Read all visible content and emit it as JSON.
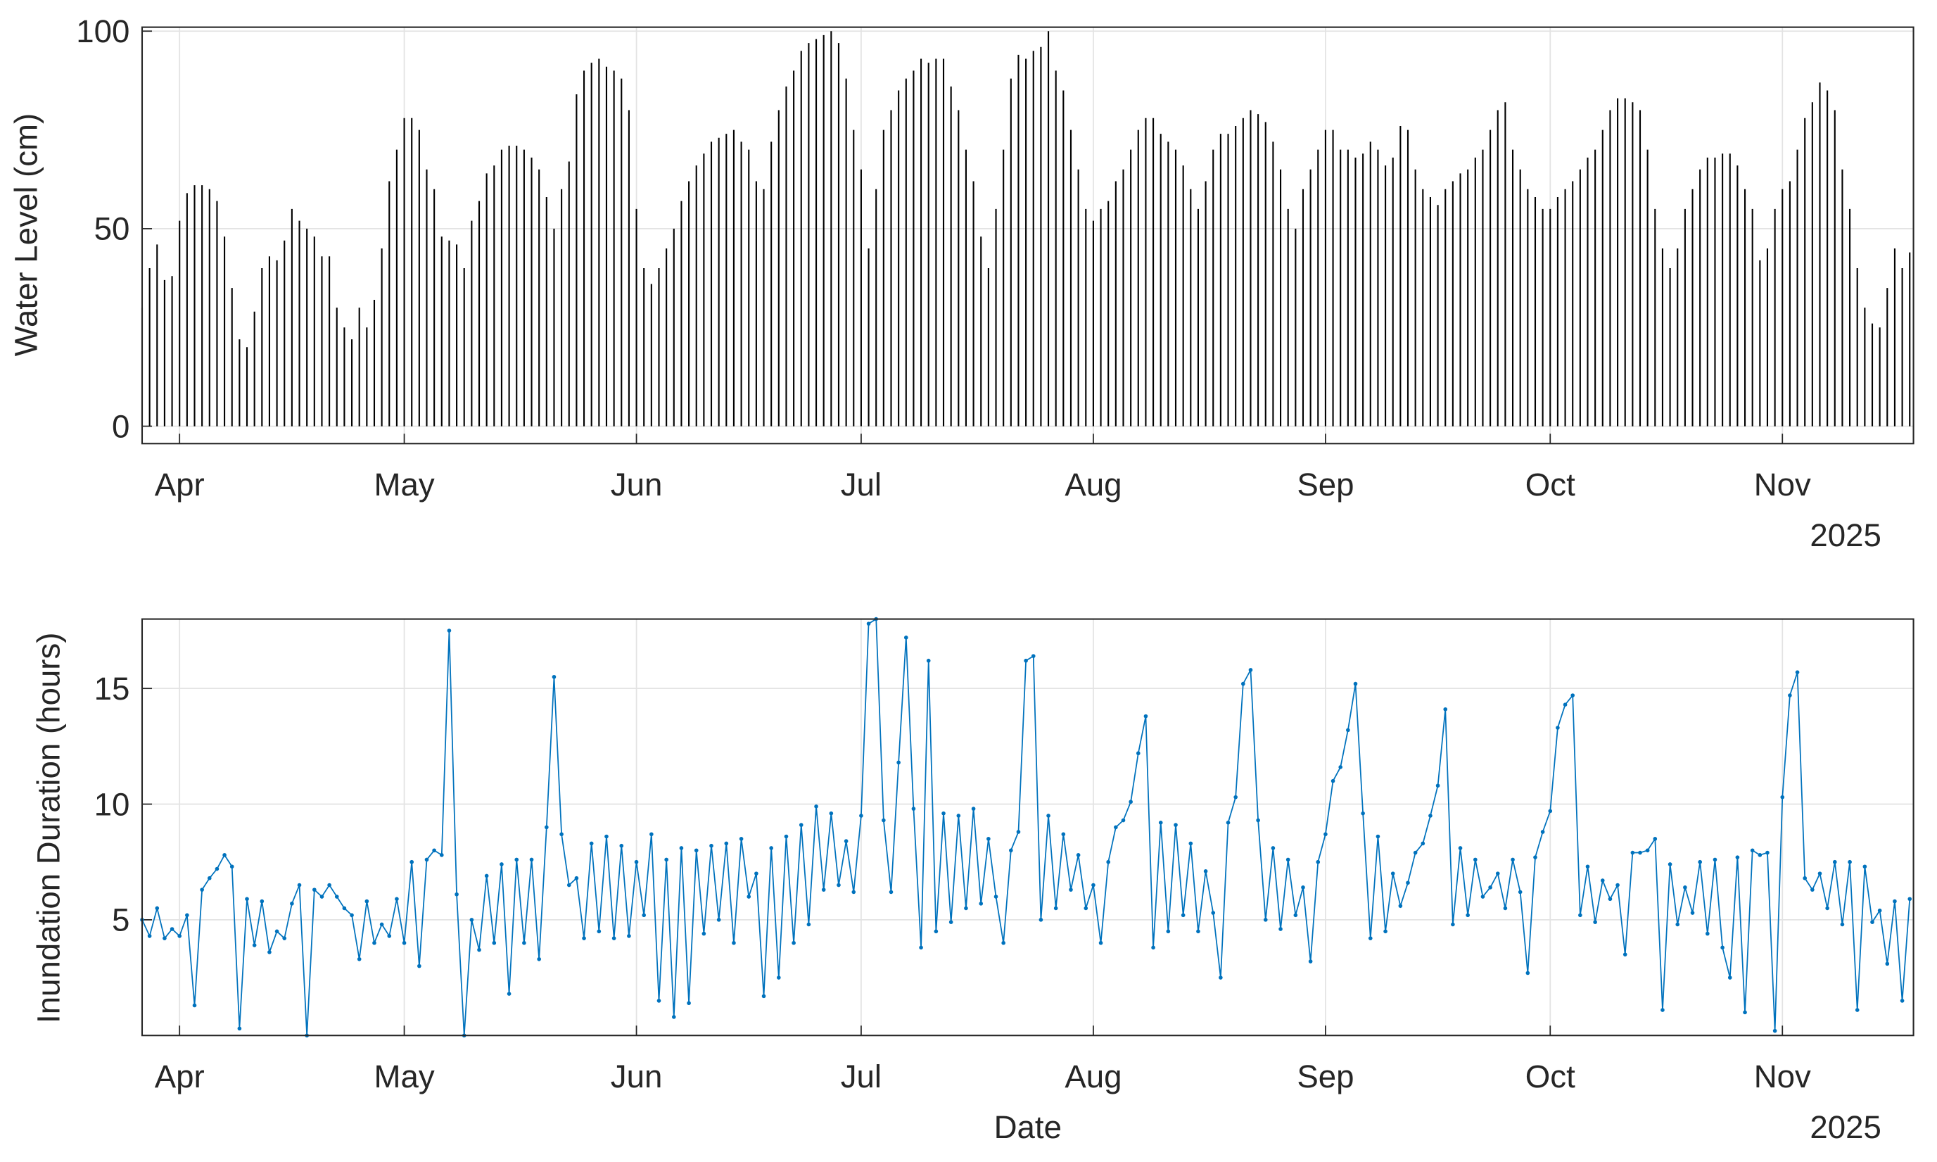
{
  "chart_data": [
    {
      "type": "stem",
      "ylabel": "Water Level (cm)",
      "x_secondary_label": "2025",
      "color": "#000000",
      "grid": true,
      "xlim": [
        86,
        322.5
      ],
      "ylim": [
        -4.4,
        101
      ],
      "yticks": [
        0,
        50,
        100
      ],
      "xticks": [
        {
          "value": 91,
          "label": "Apr"
        },
        {
          "value": 121,
          "label": "May"
        },
        {
          "value": 152,
          "label": "Jun"
        },
        {
          "value": 182,
          "label": "Jul"
        },
        {
          "value": 213,
          "label": "Aug"
        },
        {
          "value": 244,
          "label": "Sep"
        },
        {
          "value": 274,
          "label": "Oct"
        },
        {
          "value": 305,
          "label": "Nov"
        }
      ],
      "x": [
        86,
        87,
        88,
        89,
        90,
        91,
        92,
        93,
        94,
        95,
        96,
        97,
        98,
        99,
        100,
        101,
        102,
        103,
        104,
        105,
        106,
        107,
        108,
        109,
        110,
        111,
        112,
        113,
        114,
        115,
        116,
        117,
        118,
        119,
        120,
        121,
        122,
        123,
        124,
        125,
        126,
        127,
        128,
        129,
        130,
        131,
        132,
        133,
        134,
        135,
        136,
        137,
        138,
        139,
        140,
        141,
        142,
        143,
        144,
        145,
        146,
        147,
        148,
        149,
        150,
        151,
        152,
        153,
        154,
        155,
        156,
        157,
        158,
        159,
        160,
        161,
        162,
        163,
        164,
        165,
        166,
        167,
        168,
        169,
        170,
        171,
        172,
        173,
        174,
        175,
        176,
        177,
        178,
        179,
        180,
        181,
        182,
        183,
        184,
        185,
        186,
        187,
        188,
        189,
        190,
        191,
        192,
        193,
        194,
        195,
        196,
        197,
        198,
        199,
        200,
        201,
        202,
        203,
        204,
        205,
        206,
        207,
        208,
        209,
        210,
        211,
        212,
        213,
        214,
        215,
        216,
        217,
        218,
        219,
        220,
        221,
        222,
        223,
        224,
        225,
        226,
        227,
        228,
        229,
        230,
        231,
        232,
        233,
        234,
        235,
        236,
        237,
        238,
        239,
        240,
        241,
        242,
        243,
        244,
        245,
        246,
        247,
        248,
        249,
        250,
        251,
        252,
        253,
        254,
        255,
        256,
        257,
        258,
        259,
        260,
        261,
        262,
        263,
        264,
        265,
        266,
        267,
        268,
        269,
        270,
        271,
        272,
        273,
        274,
        275,
        276,
        277,
        278,
        279,
        280,
        281,
        282,
        283,
        284,
        285,
        286,
        287,
        288,
        289,
        290,
        291,
        292,
        293,
        294,
        295,
        296,
        297,
        298,
        299,
        300,
        301,
        302,
        303,
        304,
        305,
        306,
        307,
        308,
        309,
        310,
        311,
        312,
        313,
        314,
        315,
        316,
        317,
        318,
        319,
        320,
        321,
        322
      ],
      "values": [
        30,
        40,
        46,
        37,
        38,
        52,
        59,
        61,
        61,
        60,
        57,
        48,
        35,
        22,
        20,
        29,
        40,
        43,
        42,
        47,
        55,
        52,
        50,
        48,
        43,
        43,
        30,
        25,
        22,
        30,
        25,
        32,
        45,
        62,
        70,
        78,
        78,
        75,
        65,
        60,
        48,
        47,
        46,
        40,
        52,
        57,
        64,
        66,
        70,
        71,
        71,
        70,
        68,
        65,
        58,
        50,
        60,
        67,
        84,
        90,
        92,
        93,
        91,
        90,
        88,
        80,
        55,
        40,
        36,
        40,
        45,
        50,
        57,
        62,
        66,
        69,
        72,
        73,
        74,
        75,
        72,
        70,
        62,
        60,
        72,
        80,
        86,
        90,
        95,
        97,
        98,
        99,
        100,
        97,
        88,
        75,
        65,
        45,
        60,
        75,
        80,
        85,
        88,
        90,
        93,
        92,
        93,
        93,
        86,
        80,
        70,
        62,
        48,
        40,
        55,
        70,
        88,
        94,
        93,
        95,
        96,
        100,
        90,
        85,
        75,
        65,
        55,
        52,
        55,
        57,
        62,
        65,
        70,
        75,
        78,
        78,
        74,
        72,
        70,
        66,
        60,
        55,
        62,
        70,
        74,
        74,
        76,
        78,
        80,
        79,
        77,
        72,
        65,
        55,
        50,
        60,
        65,
        70,
        75,
        75,
        70,
        70,
        68,
        69,
        72,
        70,
        66,
        68,
        76,
        75,
        65,
        60,
        58,
        56,
        60,
        62,
        64,
        65,
        68,
        70,
        75,
        80,
        82,
        70,
        65,
        60,
        58,
        55,
        55,
        58,
        60,
        62,
        65,
        68,
        70,
        75,
        80,
        83,
        83,
        82,
        80,
        70,
        55,
        45,
        40,
        45,
        55,
        60,
        65,
        68,
        68,
        69,
        69,
        66,
        60,
        55,
        42,
        45,
        55,
        60,
        62,
        70,
        78,
        82,
        87,
        85,
        80,
        65,
        55,
        40,
        30,
        26,
        25,
        35,
        45,
        40,
        44
      ]
    },
    {
      "type": "line",
      "ylabel": "Inundation Duration (hours)",
      "xlabel": "Date",
      "x_secondary_label": "2025",
      "color": "#0072bd",
      "grid": true,
      "xlim": [
        86,
        322.5
      ],
      "ylim": [
        0,
        18
      ],
      "yticks": [
        5,
        10,
        15
      ],
      "xticks": [
        {
          "value": 91,
          "label": "Apr"
        },
        {
          "value": 121,
          "label": "May"
        },
        {
          "value": 152,
          "label": "Jun"
        },
        {
          "value": 182,
          "label": "Jul"
        },
        {
          "value": 213,
          "label": "Aug"
        },
        {
          "value": 244,
          "label": "Sep"
        },
        {
          "value": 274,
          "label": "Oct"
        },
        {
          "value": 305,
          "label": "Nov"
        }
      ],
      "x": [
        86,
        87,
        88,
        89,
        90,
        91,
        92,
        93,
        94,
        95,
        96,
        97,
        98,
        99,
        100,
        101,
        102,
        103,
        104,
        105,
        106,
        107,
        108,
        109,
        110,
        111,
        112,
        113,
        114,
        115,
        116,
        117,
        118,
        119,
        120,
        121,
        122,
        123,
        124,
        125,
        126,
        127,
        128,
        129,
        130,
        131,
        132,
        133,
        134,
        135,
        136,
        137,
        138,
        139,
        140,
        141,
        142,
        143,
        144,
        145,
        146,
        147,
        148,
        149,
        150,
        151,
        152,
        153,
        154,
        155,
        156,
        157,
        158,
        159,
        160,
        161,
        162,
        163,
        164,
        165,
        166,
        167,
        168,
        169,
        170,
        171,
        172,
        173,
        174,
        175,
        176,
        177,
        178,
        179,
        180,
        181,
        182,
        183,
        184,
        185,
        186,
        187,
        188,
        189,
        190,
        191,
        192,
        193,
        194,
        195,
        196,
        197,
        198,
        199,
        200,
        201,
        202,
        203,
        204,
        205,
        206,
        207,
        208,
        209,
        210,
        211,
        212,
        213,
        214,
        215,
        216,
        217,
        218,
        219,
        220,
        221,
        222,
        223,
        224,
        225,
        226,
        227,
        228,
        229,
        230,
        231,
        232,
        233,
        234,
        235,
        236,
        237,
        238,
        239,
        240,
        241,
        242,
        243,
        244,
        245,
        246,
        247,
        248,
        249,
        250,
        251,
        252,
        253,
        254,
        255,
        256,
        257,
        258,
        259,
        260,
        261,
        262,
        263,
        264,
        265,
        266,
        267,
        268,
        269,
        270,
        271,
        272,
        273,
        274,
        275,
        276,
        277,
        278,
        279,
        280,
        281,
        282,
        283,
        284,
        285,
        286,
        287,
        288,
        289,
        290,
        291,
        292,
        293,
        294,
        295,
        296,
        297,
        298,
        299,
        300,
        301,
        302,
        303,
        304,
        305,
        306,
        307,
        308,
        309,
        310,
        311,
        312,
        313,
        314,
        315,
        316,
        317,
        318,
        319,
        320,
        321,
        322
      ],
      "values": [
        5,
        4.3,
        5.5,
        4.2,
        4.6,
        4.3,
        5.2,
        1.3,
        6.3,
        6.8,
        7.2,
        7.8,
        7.3,
        0.3,
        5.9,
        3.9,
        5.8,
        3.6,
        4.5,
        4.2,
        5.7,
        6.5,
        0,
        6.3,
        6,
        6.5,
        6,
        5.5,
        5.2,
        3.3,
        5.8,
        4,
        4.8,
        4.3,
        5.9,
        4,
        7.5,
        3,
        7.6,
        8,
        7.8,
        17.5,
        6.1,
        0,
        5,
        3.7,
        6.9,
        4,
        7.4,
        1.8,
        7.6,
        4,
        7.6,
        3.3,
        9,
        15.5,
        8.7,
        6.5,
        6.8,
        4.2,
        8.3,
        4.5,
        8.6,
        4.2,
        8.2,
        4.3,
        7.5,
        5.2,
        8.7,
        1.5,
        7.6,
        0.8,
        8.1,
        1.4,
        8,
        4.4,
        8.2,
        5,
        8.3,
        4,
        8.5,
        6,
        7,
        1.7,
        8.1,
        2.5,
        8.6,
        4,
        9.1,
        4.8,
        9.9,
        6.3,
        9.6,
        6.5,
        8.4,
        6.2,
        9.5,
        17.8,
        18,
        9.3,
        6.2,
        11.8,
        17.2,
        9.8,
        3.8,
        16.2,
        4.5,
        9.6,
        4.9,
        9.5,
        5.5,
        9.8,
        5.7,
        8.5,
        6,
        4,
        8,
        8.8,
        16.2,
        16.4,
        5,
        9.5,
        5.5,
        8.7,
        6.3,
        7.8,
        5.5,
        6.5,
        4,
        7.5,
        9,
        9.3,
        10.1,
        12.2,
        13.8,
        3.8,
        9.2,
        4.5,
        9.1,
        5.2,
        8.3,
        4.5,
        7.1,
        5.3,
        2.5,
        9.2,
        10.3,
        15.2,
        15.8,
        9.3,
        5,
        8.1,
        4.6,
        7.6,
        5.2,
        6.4,
        3.2,
        7.5,
        8.7,
        11,
        11.6,
        13.2,
        15.2,
        9.6,
        4.2,
        8.6,
        4.5,
        7,
        5.6,
        6.6,
        7.9,
        8.3,
        9.5,
        10.8,
        14.1,
        4.8,
        8.1,
        5.2,
        7.6,
        6,
        6.4,
        7,
        5.5,
        7.6,
        6.2,
        2.7,
        7.7,
        8.8,
        9.7,
        13.3,
        14.3,
        14.7,
        5.2,
        7.3,
        4.9,
        6.7,
        5.9,
        6.5,
        3.5,
        7.9,
        7.9,
        8,
        8.5,
        1.1,
        7.4,
        4.8,
        6.4,
        5.3,
        7.5,
        4.4,
        7.6,
        3.8,
        2.5,
        7.7,
        1,
        8,
        7.8,
        7.9,
        0.2,
        10.3,
        14.7,
        15.7,
        6.8,
        6.3,
        7,
        5.5,
        7.5,
        4.8,
        7.5,
        1.1,
        7.3,
        4.9,
        5.4,
        3.1,
        5.8,
        1.5,
        5.9
      ]
    }
  ]
}
